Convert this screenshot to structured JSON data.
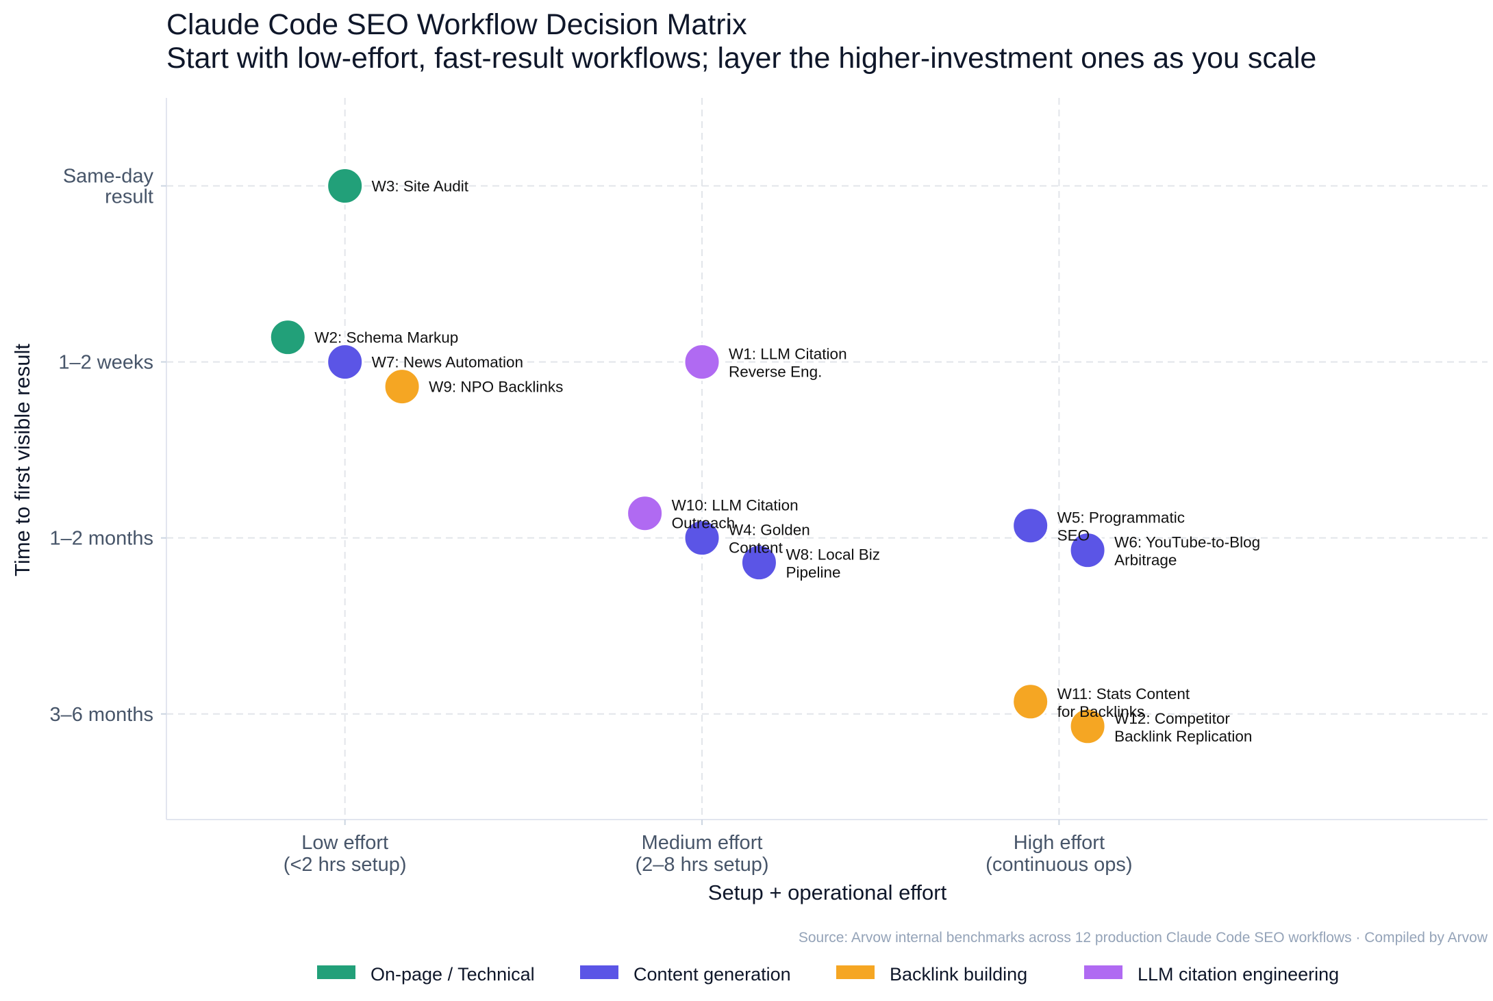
{
  "chart_data": {
    "type": "scatter",
    "title": "Claude Code SEO Workflow Decision Matrix",
    "subtitle": "Start with low-effort, fast-result workflows; layer the higher-investment ones as you scale",
    "xlabel": "Setup + operational effort",
    "ylabel": "Time to first visible result",
    "x_ticks": [
      {
        "value": 1,
        "lines": [
          "Low effort",
          "(<2 hrs setup)"
        ]
      },
      {
        "value": 2,
        "lines": [
          "Medium effort",
          "(2–8 hrs setup)"
        ]
      },
      {
        "value": 3,
        "lines": [
          "High effort",
          "(continuous ops)"
        ]
      }
    ],
    "y_ticks": [
      {
        "value": 1,
        "lines": [
          "Same-day",
          "result"
        ]
      },
      {
        "value": 2,
        "lines": [
          "1–2 weeks"
        ]
      },
      {
        "value": 3,
        "lines": [
          "1–2 months"
        ]
      },
      {
        "value": 4,
        "lines": [
          "3–6 months"
        ]
      }
    ],
    "xlim": [
      0.5,
      4.2
    ],
    "ylim": [
      0.5,
      4.6
    ],
    "y_inverted": true,
    "grid": true,
    "legend_position": "bottom",
    "series": [
      {
        "name": "On-page / Technical",
        "color": "#22a079"
      },
      {
        "name": "Content generation",
        "color": "#5b55e6"
      },
      {
        "name": "Backlink building",
        "color": "#f5a623"
      },
      {
        "name": "LLM citation engineering",
        "color": "#b06af2"
      }
    ],
    "points": [
      {
        "id": "W1",
        "lines": [
          "W1: LLM Citation",
          "Reverse Eng."
        ],
        "series": 3,
        "x": 2.0,
        "y": 2.0
      },
      {
        "id": "W2",
        "lines": [
          "W2: Schema Markup"
        ],
        "series": 0,
        "x": 0.84,
        "y": 1.86
      },
      {
        "id": "W3",
        "lines": [
          "W3: Site Audit"
        ],
        "series": 0,
        "x": 1.0,
        "y": 1.0
      },
      {
        "id": "W4",
        "lines": [
          "W4: Golden",
          "Content"
        ],
        "series": 1,
        "x": 2.0,
        "y": 3.0
      },
      {
        "id": "W5",
        "lines": [
          "W5: Programmatic",
          "SEO"
        ],
        "series": 1,
        "x": 2.92,
        "y": 2.93
      },
      {
        "id": "W6",
        "lines": [
          "W6: YouTube-to-Blog",
          "Arbitrage"
        ],
        "series": 1,
        "x": 3.08,
        "y": 3.07
      },
      {
        "id": "W7",
        "lines": [
          "W7: News Automation"
        ],
        "series": 1,
        "x": 1.0,
        "y": 2.0
      },
      {
        "id": "W8",
        "lines": [
          "W8: Local Biz",
          "Pipeline"
        ],
        "series": 1,
        "x": 2.16,
        "y": 3.14
      },
      {
        "id": "W9",
        "lines": [
          "W9: NPO Backlinks"
        ],
        "series": 2,
        "x": 1.16,
        "y": 2.14
      },
      {
        "id": "W10",
        "lines": [
          "W10: LLM Citation",
          "Outreach"
        ],
        "series": 3,
        "x": 1.84,
        "y": 2.86
      },
      {
        "id": "W11",
        "lines": [
          "W11: Stats Content",
          "for Backlinks"
        ],
        "series": 2,
        "x": 2.92,
        "y": 3.93
      },
      {
        "id": "W12",
        "lines": [
          "W12: Competitor",
          "Backlink Replication"
        ],
        "series": 2,
        "x": 3.08,
        "y": 4.07
      }
    ],
    "source": "Source: Arvow internal benchmarks across 12 production Claude Code SEO workflows · Compiled by Arvow"
  }
}
